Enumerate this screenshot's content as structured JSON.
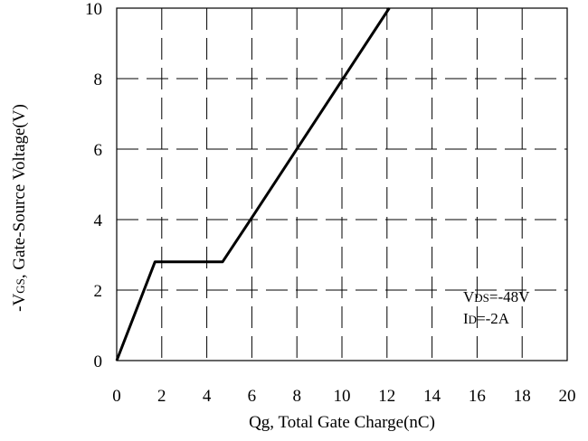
{
  "chart_data": {
    "type": "line",
    "xlabel": "Qg, Total Gate Charge(nC)",
    "ylabel": {
      "prefix": "-V",
      "sub": "GS",
      "rest": ", Gate-Source Voltage(V)"
    },
    "xlim": [
      0,
      20
    ],
    "ylim": [
      0,
      10
    ],
    "x_ticks": [
      "0",
      "2",
      "4",
      "6",
      "8",
      "10",
      "12",
      "14",
      "16",
      "18",
      "20"
    ],
    "y_ticks": [
      "0",
      "2",
      "4",
      "6",
      "8",
      "10"
    ],
    "grid": true,
    "series": [
      {
        "x": [
          0,
          1.7,
          4.7,
          6.1,
          12.1
        ],
        "y": [
          0,
          2.8,
          2.8,
          4.15,
          10
        ]
      }
    ],
    "annotations": [
      {
        "main": "V",
        "sub": "DS",
        "rest": "=-48V"
      },
      {
        "main": "I",
        "sub": "D",
        "rest": "=-2A"
      }
    ]
  }
}
